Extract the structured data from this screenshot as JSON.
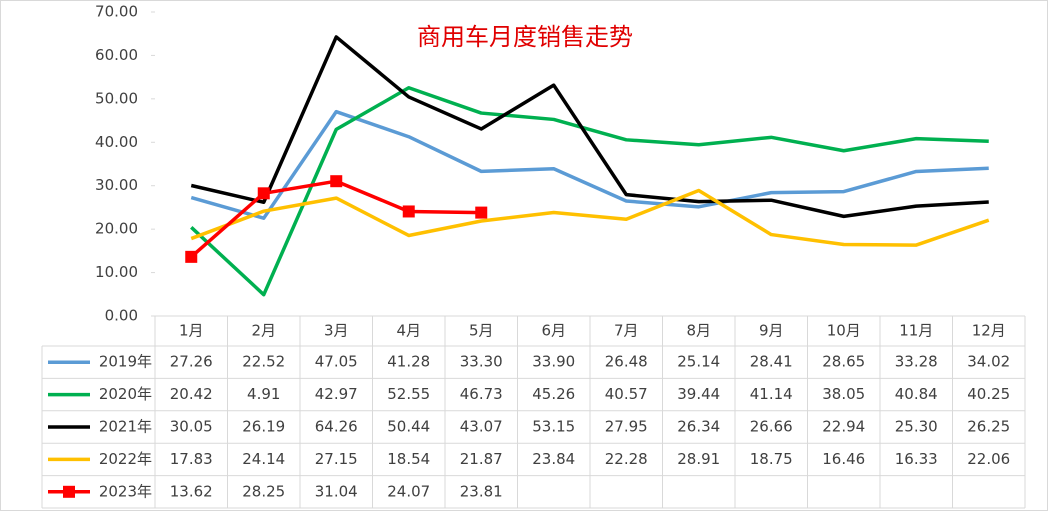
{
  "chart_data": {
    "type": "line",
    "title": "商用车月度销售走势",
    "categories": [
      "1月",
      "2月",
      "3月",
      "4月",
      "5月",
      "6月",
      "7月",
      "8月",
      "9月",
      "10月",
      "11月",
      "12月"
    ],
    "ylim": [
      0,
      70
    ],
    "yticks": [
      {
        "value": 0,
        "label": "0.00"
      },
      {
        "value": 10,
        "label": "10.00"
      },
      {
        "value": 20,
        "label": "20.00"
      },
      {
        "value": 30,
        "label": "30.00"
      },
      {
        "value": 40,
        "label": "40.00"
      },
      {
        "value": 50,
        "label": "50.00"
      },
      {
        "value": 60,
        "label": "60.00"
      },
      {
        "value": 70,
        "label": "70.00"
      }
    ],
    "grid": false,
    "series": [
      {
        "name": "2019年",
        "color": "#5b9bd5",
        "values": [
          27.26,
          22.52,
          47.05,
          41.28,
          33.3,
          33.9,
          26.48,
          25.14,
          28.41,
          28.65,
          33.28,
          34.02
        ],
        "value_labels": [
          "27.26",
          "22.52",
          "47.05",
          "41.28",
          "33.30",
          "33.90",
          "26.48",
          "25.14",
          "28.41",
          "28.65",
          "33.28",
          "34.02"
        ]
      },
      {
        "name": "2020年",
        "color": "#00b050",
        "values": [
          20.42,
          4.91,
          42.97,
          52.55,
          46.73,
          45.26,
          40.57,
          39.44,
          41.14,
          38.05,
          40.84,
          40.25
        ],
        "value_labels": [
          "20.42",
          "4.91",
          "42.97",
          "52.55",
          "46.73",
          "45.26",
          "40.57",
          "39.44",
          "41.14",
          "38.05",
          "40.84",
          "40.25"
        ]
      },
      {
        "name": "2021年",
        "color": "#000000",
        "values": [
          30.05,
          26.19,
          64.26,
          50.44,
          43.07,
          53.15,
          27.95,
          26.34,
          26.66,
          22.94,
          25.3,
          26.25
        ],
        "value_labels": [
          "30.05",
          "26.19",
          "64.26",
          "50.44",
          "43.07",
          "53.15",
          "27.95",
          "26.34",
          "26.66",
          "22.94",
          "25.30",
          "26.25"
        ]
      },
      {
        "name": "2022年",
        "color": "#ffc000",
        "values": [
          17.83,
          24.14,
          27.15,
          18.54,
          21.87,
          23.84,
          22.28,
          28.91,
          18.75,
          16.46,
          16.33,
          22.06
        ],
        "value_labels": [
          "17.83",
          "24.14",
          "27.15",
          "18.54",
          "21.87",
          "23.84",
          "22.28",
          "28.91",
          "18.75",
          "16.46",
          "16.33",
          "22.06"
        ]
      },
      {
        "name": "2023年",
        "color": "#ff0000",
        "marker": "square",
        "values": [
          13.62,
          28.25,
          31.04,
          24.07,
          23.81,
          null,
          null,
          null,
          null,
          null,
          null,
          null
        ],
        "value_labels": [
          "13.62",
          "28.25",
          "31.04",
          "24.07",
          "23.81",
          null,
          null,
          null,
          null,
          null,
          null,
          null
        ]
      }
    ]
  }
}
